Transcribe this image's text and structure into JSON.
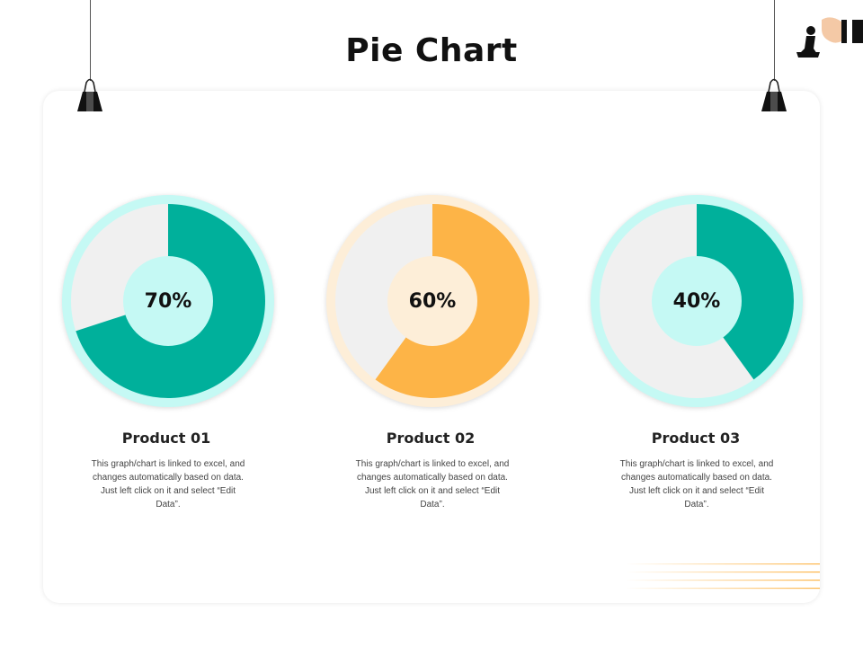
{
  "page": {
    "title": "Pie Chart"
  },
  "colors": {
    "teal": "#00b09b",
    "orange": "#fdb447",
    "track": "#f0f0f0",
    "ring_cyan": "#c5f9f4",
    "ring_peach": "#fdeed8",
    "center_cyan": "#c5f9f4",
    "center_peach": "#fdeed8"
  },
  "chart_data": [
    {
      "type": "pie",
      "label": "70%",
      "values": [
        70,
        30
      ],
      "title": "Product 01"
    },
    {
      "type": "pie",
      "label": "60%",
      "values": [
        60,
        40
      ],
      "title": "Product 02"
    },
    {
      "type": "pie",
      "label": "40%",
      "values": [
        40,
        60
      ],
      "title": "Product 03"
    }
  ],
  "products": [
    {
      "name": "Product 01",
      "desc": "This graph/chart is linked to excel, and changes automatically based on data. Just left click on it and select “Edit Data”."
    },
    {
      "name": "Product 02",
      "desc": "This graph/chart is linked to excel, and changes automatically based on data. Just left click on it and select “Edit Data”."
    },
    {
      "name": "Product 03",
      "desc": "This graph/chart is linked to excel, and changes automatically based on data. Just left click on it and select “Edit Data”."
    }
  ],
  "icons": {
    "binder_clip": "binder-clip-icon",
    "hand_chess": "hand-chess-piece-icon"
  }
}
